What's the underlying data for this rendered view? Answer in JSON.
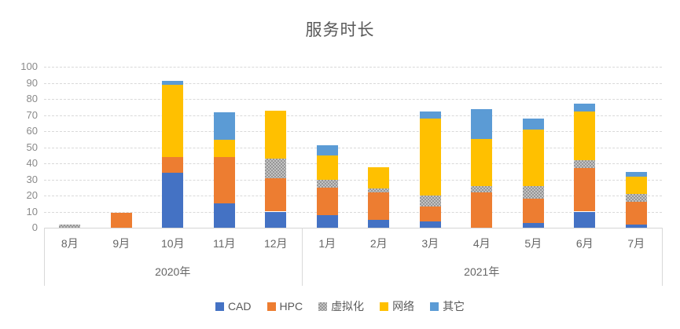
{
  "title": "服务时长",
  "colors": {
    "cad": "#4472C4",
    "hpc": "#ED7D31",
    "virtualization": "#A5A5A5",
    "network": "#FFC000",
    "other": "#5B9BD5",
    "gridline": "#D9D9D9",
    "axis_text": "#8A8A8A",
    "label_text": "#666666",
    "title_text": "#595959"
  },
  "chart_data": {
    "type": "bar",
    "subtype": "stacked-column",
    "title": "服务时长",
    "xlabel": "",
    "ylabel": "",
    "ylim": [
      0,
      100
    ],
    "ytick_step": 10,
    "y_ticks": [
      "0",
      "10",
      "20",
      "30",
      "40",
      "50",
      "60",
      "70",
      "80",
      "90",
      "100"
    ],
    "grid": true,
    "gridline_style": "dashed",
    "legend_position": "bottom",
    "categories": [
      "8月",
      "9月",
      "10月",
      "11月",
      "12月",
      "1月",
      "2月",
      "3月",
      "4月",
      "5月",
      "6月",
      "7月"
    ],
    "category_groups": [
      {
        "label": "2020年",
        "span": 5
      },
      {
        "label": "2021年",
        "span": 7
      }
    ],
    "series": [
      {
        "name": "CAD",
        "color": "#4472C4",
        "pattern": "solid",
        "values": [
          0,
          0,
          34,
          15,
          10,
          8,
          5,
          4,
          0,
          3,
          10,
          2
        ]
      },
      {
        "name": "HPC",
        "color": "#ED7D31",
        "pattern": "solid",
        "values": [
          0,
          9.5,
          10,
          29,
          20.5,
          17,
          17,
          9,
          22,
          15,
          27,
          14
        ]
      },
      {
        "name": "虚拟化",
        "color": "#A5A5A5",
        "pattern": "checker",
        "values": [
          2,
          0,
          0,
          0,
          12.5,
          5,
          2.5,
          7,
          4,
          8,
          5,
          5
        ]
      },
      {
        "name": "网络",
        "color": "#FFC000",
        "pattern": "solid",
        "values": [
          0,
          0,
          45,
          10.5,
          29.5,
          15,
          13,
          48,
          29,
          35,
          30,
          10.5
        ]
      },
      {
        "name": "其它",
        "color": "#5B9BD5",
        "pattern": "solid",
        "values": [
          0,
          0,
          2,
          17,
          0,
          6,
          0,
          4,
          18.5,
          7,
          5,
          3
        ]
      }
    ]
  }
}
